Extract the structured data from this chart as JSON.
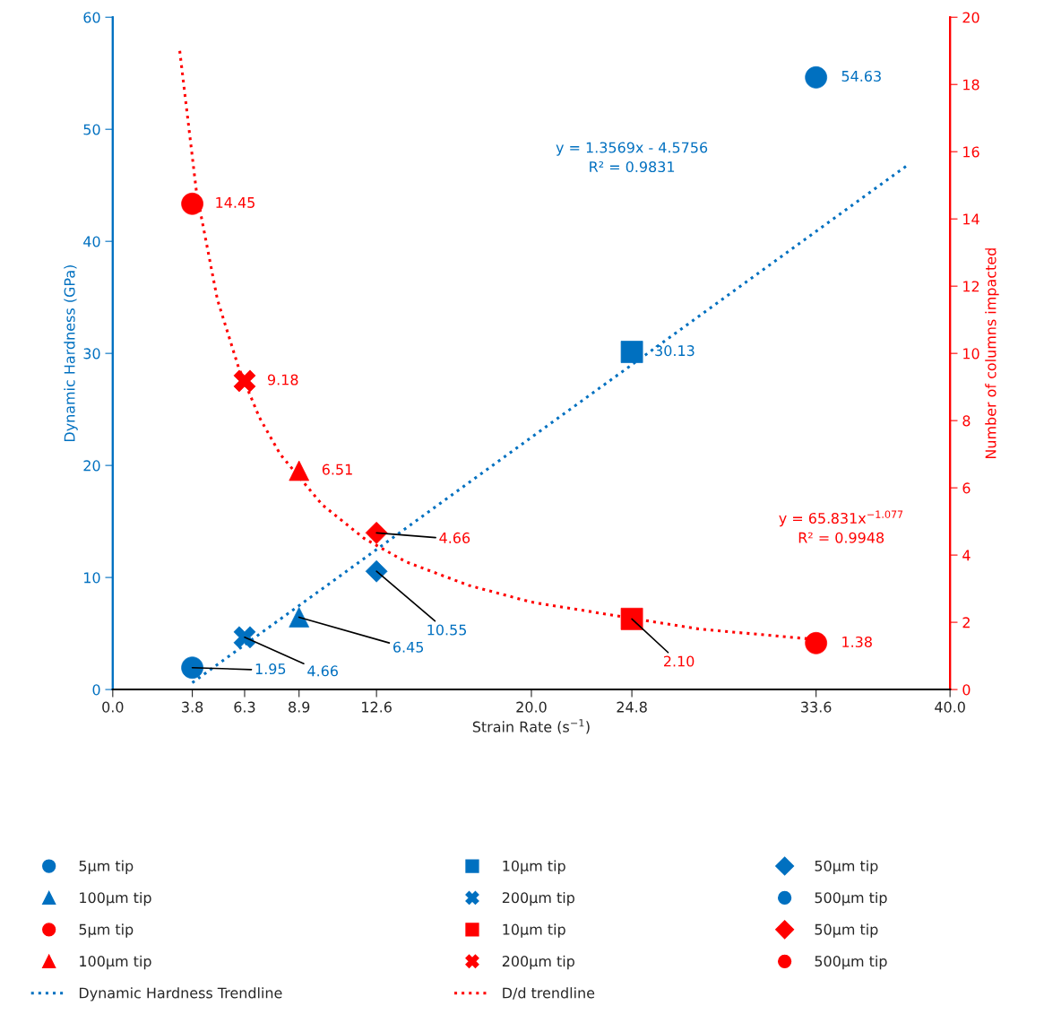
{
  "chart_data": {
    "type": "scatter",
    "xlabel": "Strain Rate (s$^{−1}$)",
    "ylabel": "Dynamic Hardness (GPa)",
    "y2label": "Number of columns impacted",
    "xlim": [
      0,
      40
    ],
    "xticks": [
      {
        "value": 0,
        "label": "0.0"
      },
      {
        "value": 3.8,
        "label": "3.8"
      },
      {
        "value": 6.3,
        "label": "6.3"
      },
      {
        "value": 8.9,
        "label": "8.9"
      },
      {
        "value": 12.6,
        "label": "12.6"
      },
      {
        "value": 20,
        "label": "20.0"
      },
      {
        "value": 24.8,
        "label": "24.8"
      },
      {
        "value": 33.6,
        "label": "33.6"
      },
      {
        "value": 40,
        "label": "40.0"
      }
    ],
    "ylim": [
      0,
      60
    ],
    "yticks": [
      0,
      10,
      20,
      30,
      40,
      50,
      60
    ],
    "y2lim": [
      0,
      20
    ],
    "y2ticks": [
      0,
      2,
      4,
      6,
      8,
      10,
      12,
      14,
      16,
      18,
      20
    ],
    "grid": false,
    "legend": "bottom",
    "series": [
      {
        "name": "5µm tip",
        "marker": "circle",
        "color": "#0070c0",
        "x": [
          33.6
        ],
        "values": [
          54.63
        ],
        "value_labels": [
          "54.63"
        ]
      },
      {
        "name": "10µm tip",
        "marker": "square",
        "color": "#0070c0",
        "x": [
          24.8
        ],
        "values": [
          30.13
        ],
        "value_labels": [
          "30.13"
        ]
      },
      {
        "name": "50µm tip",
        "marker": "diamond",
        "color": "#0070c0",
        "x": [
          12.6
        ],
        "values": [
          10.55
        ],
        "value_labels": [
          "10.55"
        ]
      },
      {
        "name": "100µm tip",
        "marker": "triangle",
        "color": "#0070c0",
        "x": [
          8.9
        ],
        "values": [
          6.45
        ],
        "value_labels": [
          "6.45"
        ]
      },
      {
        "name": "200µm tip",
        "marker": "cross",
        "color": "#0070c0",
        "x": [
          6.3
        ],
        "values": [
          4.66
        ],
        "value_labels": [
          "4.66"
        ]
      },
      {
        "name": "500µm tip",
        "marker": "circle",
        "color": "#0070c0",
        "x": [
          3.8
        ],
        "values": [
          1.95
        ],
        "value_labels": [
          "1.95"
        ]
      },
      {
        "name": "5µm tip",
        "marker": "circle",
        "color": "#ff0000",
        "axis": "y2",
        "x": [
          33.6
        ],
        "values": [
          1.38
        ],
        "value_labels": [
          "1.38"
        ]
      },
      {
        "name": "10µm tip",
        "marker": "square",
        "color": "#ff0000",
        "axis": "y2",
        "x": [
          24.8
        ],
        "values": [
          2.1
        ],
        "value_labels": [
          "2.10"
        ]
      },
      {
        "name": "50µm tip",
        "marker": "diamond",
        "color": "#ff0000",
        "axis": "y2",
        "x": [
          12.6
        ],
        "values": [
          4.66
        ],
        "value_labels": [
          "4.66"
        ]
      },
      {
        "name": "100µm tip",
        "marker": "triangle",
        "color": "#ff0000",
        "axis": "y2",
        "x": [
          8.9
        ],
        "values": [
          6.51
        ],
        "value_labels": [
          "6.51"
        ]
      },
      {
        "name": "200µm tip",
        "marker": "cross",
        "color": "#ff0000",
        "axis": "y2",
        "x": [
          6.3
        ],
        "values": [
          9.18
        ],
        "value_labels": [
          "9.18"
        ]
      },
      {
        "name": "500µm tip",
        "marker": "circle",
        "color": "#ff0000",
        "axis": "y2",
        "x": [
          3.8
        ],
        "values": [
          14.45
        ],
        "value_labels": [
          "14.45"
        ]
      },
      {
        "name": "Dynamic Hardness Trendline",
        "type": "line",
        "line_style": "dotted",
        "color": "#0070c0",
        "x": [
          3.8,
          37.9
        ],
        "values": [
          0.6,
          46.7
        ]
      },
      {
        "name": "D/d trendline",
        "type": "line",
        "line_style": "dotted",
        "color": "#ff0000",
        "axis": "y2",
        "x": [
          3.2,
          4,
          5,
          6,
          7,
          8,
          10,
          12,
          14,
          17,
          20,
          24,
          28,
          33.4
        ],
        "values": [
          19.0,
          14.8,
          11.6,
          9.6,
          8.1,
          7.0,
          5.5,
          4.5,
          3.8,
          3.1,
          2.6,
          2.2,
          1.8,
          1.5
        ]
      }
    ],
    "annotations": [
      "y = 1.3569x - 4.5756\nR² = 0.9831",
      "y = 65.831x$^{−1.077}$\nR² = 0.9948"
    ]
  }
}
